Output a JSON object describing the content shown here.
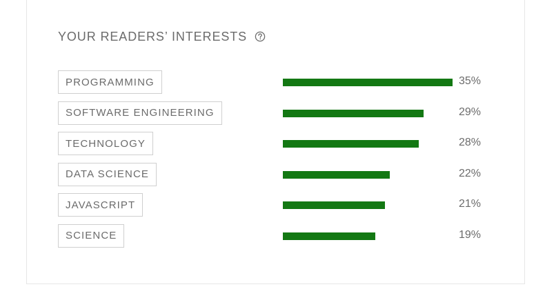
{
  "panel": {
    "title": "YOUR READERS’ INTERESTS",
    "help_icon": "question-circle-icon",
    "bar_color": "#137813",
    "interests": [
      {
        "label": "PROGRAMMING",
        "percent": 35,
        "percent_label": "35%"
      },
      {
        "label": "SOFTWARE ENGINEERING",
        "percent": 29,
        "percent_label": "29%"
      },
      {
        "label": "TECHNOLOGY",
        "percent": 28,
        "percent_label": "28%"
      },
      {
        "label": "DATA SCIENCE",
        "percent": 22,
        "percent_label": "22%"
      },
      {
        "label": "JAVASCRIPT",
        "percent": 21,
        "percent_label": "21%"
      },
      {
        "label": "SCIENCE",
        "percent": 19,
        "percent_label": "19%"
      }
    ]
  }
}
